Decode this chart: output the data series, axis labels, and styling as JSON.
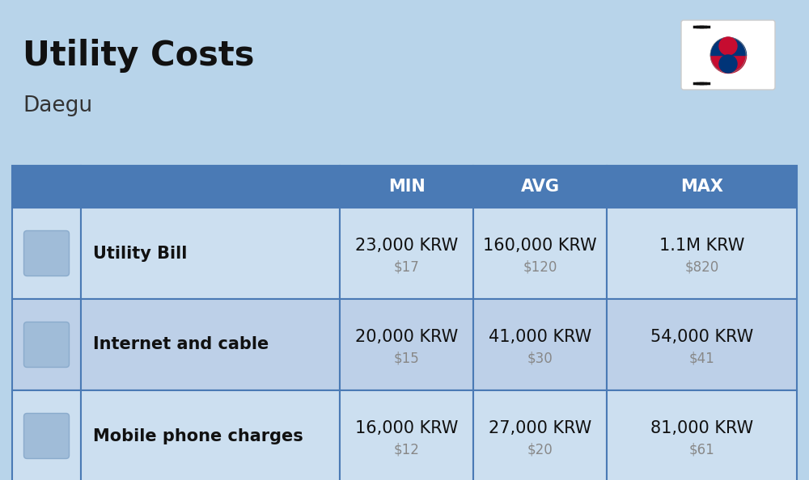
{
  "title": "Utility Costs",
  "subtitle": "Daegu",
  "background_color": "#b8d4ea",
  "table_header_color": "#4a7ab5",
  "table_header_text_color": "#ffffff",
  "table_row_color_odd": "#ccdff0",
  "table_row_color_even": "#bdd0e8",
  "table_border_color": "#4a7ab5",
  "icon_col_color": "#b0c8e0",
  "headers": [
    "MIN",
    "AVG",
    "MAX"
  ],
  "rows": [
    {
      "label": "Utility Bill",
      "min_krw": "23,000 KRW",
      "min_usd": "$17",
      "avg_krw": "160,000 KRW",
      "avg_usd": "$120",
      "max_krw": "1.1M KRW",
      "max_usd": "$820"
    },
    {
      "label": "Internet and cable",
      "min_krw": "20,000 KRW",
      "min_usd": "$15",
      "avg_krw": "41,000 KRW",
      "avg_usd": "$30",
      "max_krw": "54,000 KRW",
      "max_usd": "$41"
    },
    {
      "label": "Mobile phone charges",
      "min_krw": "16,000 KRW",
      "min_usd": "$12",
      "avg_krw": "27,000 KRW",
      "avg_usd": "$20",
      "max_krw": "81,000 KRW",
      "max_usd": "$61"
    }
  ],
  "title_fontsize": 30,
  "subtitle_fontsize": 19,
  "header_fontsize": 15,
  "cell_krw_fontsize": 15,
  "cell_usd_fontsize": 12,
  "label_fontsize": 15,
  "fig_width": 10.0,
  "fig_height": 5.94,
  "dpi": 100
}
